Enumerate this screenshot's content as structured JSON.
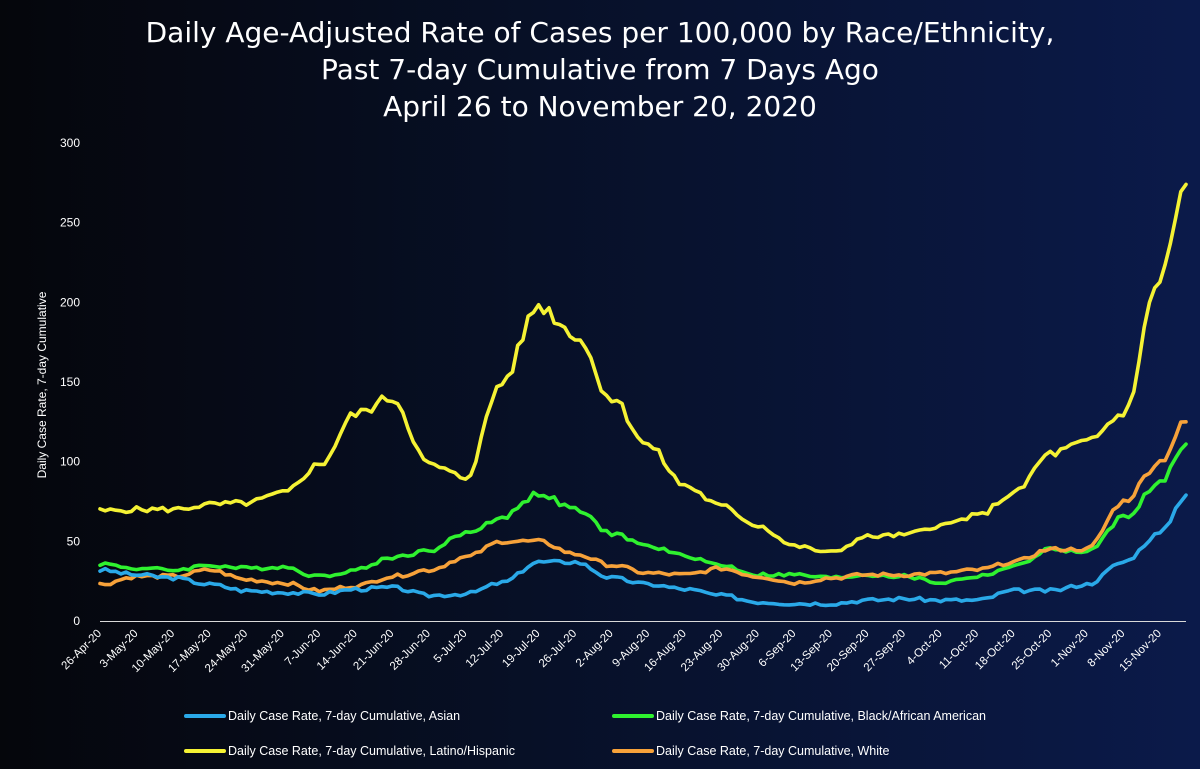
{
  "chart_data": {
    "type": "line",
    "title": "Daily Age-Adjusted Rate of Cases per 100,000 by Race/Ethnicity,",
    "subtitle": "Past 7-day Cumulative from 7 Days Ago",
    "date_range": "April 26 to November 20, 2020",
    "ylabel": "Daily Case Rate, 7-day Cumulative",
    "xlabel": "",
    "ylim": [
      0,
      300
    ],
    "yticks": [
      "0",
      "50",
      "100",
      "150",
      "200",
      "250",
      "300"
    ],
    "grid": false,
    "legend_position": "bottom",
    "x_tick_labels": [
      "26-Apr-20",
      "3-May-20",
      "10-May-20",
      "17-May-20",
      "24-May-20",
      "31-May-20",
      "7-Jun-20",
      "14-Jun-20",
      "21-Jun-20",
      "28-Jun-20",
      "5-Jul-20",
      "12-Jul-20",
      "19-Jul-20",
      "26-Jul-20",
      "2-Aug-20",
      "9-Aug-20",
      "16-Aug-20",
      "23-Aug-20",
      "30-Aug-20",
      "6-Sep-20",
      "13-Sep-20",
      "20-Sep-20",
      "27-Sep-20",
      "4-Oct-20",
      "11-Oct-20",
      "18-Oct-20",
      "25-Oct-20",
      "1-Nov-20",
      "8-Nov-20",
      "15-Nov-20"
    ],
    "x_tick_dates": [
      "2020-04-26",
      "2020-05-03",
      "2020-05-10",
      "2020-05-17",
      "2020-05-24",
      "2020-05-31",
      "2020-06-07",
      "2020-06-14",
      "2020-06-21",
      "2020-06-28",
      "2020-07-05",
      "2020-07-12",
      "2020-07-19",
      "2020-07-26",
      "2020-08-02",
      "2020-08-09",
      "2020-08-16",
      "2020-08-23",
      "2020-08-30",
      "2020-09-06",
      "2020-09-13",
      "2020-09-20",
      "2020-09-27",
      "2020-10-04",
      "2020-10-11",
      "2020-10-18",
      "2020-10-25",
      "2020-11-01",
      "2020-11-08",
      "2020-11-15"
    ],
    "series": [
      {
        "name": "Daily Case Rate, 7-day Cumulative, Asian",
        "color": "#2aa9e8",
        "points": [
          [
            "2020-04-26",
            32
          ],
          [
            "2020-05-03",
            29
          ],
          [
            "2020-05-10",
            27
          ],
          [
            "2020-05-17",
            23
          ],
          [
            "2020-05-24",
            19
          ],
          [
            "2020-05-31",
            18
          ],
          [
            "2020-06-07",
            17
          ],
          [
            "2020-06-14",
            20
          ],
          [
            "2020-06-21",
            21
          ],
          [
            "2020-06-28",
            16
          ],
          [
            "2020-07-05",
            17
          ],
          [
            "2020-07-12",
            24
          ],
          [
            "2020-07-19",
            37
          ],
          [
            "2020-07-26",
            37
          ],
          [
            "2020-08-02",
            27
          ],
          [
            "2020-08-09",
            23
          ],
          [
            "2020-08-16",
            20
          ],
          [
            "2020-08-23",
            16
          ],
          [
            "2020-08-30",
            12
          ],
          [
            "2020-09-06",
            11
          ],
          [
            "2020-09-13",
            11
          ],
          [
            "2020-09-20",
            13
          ],
          [
            "2020-09-27",
            14
          ],
          [
            "2020-10-04",
            13
          ],
          [
            "2020-10-11",
            13
          ],
          [
            "2020-10-18",
            19
          ],
          [
            "2020-10-25",
            19
          ],
          [
            "2020-11-01",
            23
          ],
          [
            "2020-11-08",
            37
          ],
          [
            "2020-11-15",
            55
          ],
          [
            "2020-11-20",
            79
          ]
        ]
      },
      {
        "name": "Daily Case Rate, 7-day Cumulative, Black/African American",
        "color": "#2ff22f",
        "points": [
          [
            "2020-04-26",
            36
          ],
          [
            "2020-05-03",
            33
          ],
          [
            "2020-05-10",
            32
          ],
          [
            "2020-05-17",
            35
          ],
          [
            "2020-05-24",
            33
          ],
          [
            "2020-05-31",
            34
          ],
          [
            "2020-06-07",
            28
          ],
          [
            "2020-06-14",
            32
          ],
          [
            "2020-06-21",
            40
          ],
          [
            "2020-06-28",
            44
          ],
          [
            "2020-07-05",
            55
          ],
          [
            "2020-07-12",
            65
          ],
          [
            "2020-07-19",
            80
          ],
          [
            "2020-07-26",
            70
          ],
          [
            "2020-08-02",
            55
          ],
          [
            "2020-08-09",
            47
          ],
          [
            "2020-08-16",
            41
          ],
          [
            "2020-08-23",
            35
          ],
          [
            "2020-08-30",
            29
          ],
          [
            "2020-09-06",
            29
          ],
          [
            "2020-09-13",
            27
          ],
          [
            "2020-09-20",
            29
          ],
          [
            "2020-09-27",
            28
          ],
          [
            "2020-10-04",
            24
          ],
          [
            "2020-10-11",
            28
          ],
          [
            "2020-10-18",
            34
          ],
          [
            "2020-10-25",
            45
          ],
          [
            "2020-11-01",
            43
          ],
          [
            "2020-11-08",
            65
          ],
          [
            "2020-11-15",
            86
          ],
          [
            "2020-11-20",
            111
          ]
        ]
      },
      {
        "name": "Daily Case Rate, 7-day Cumulative, Latino/Hispanic",
        "color": "#f5f234",
        "points": [
          [
            "2020-04-26",
            69
          ],
          [
            "2020-05-03",
            70
          ],
          [
            "2020-05-10",
            70
          ],
          [
            "2020-05-17",
            73
          ],
          [
            "2020-05-24",
            74
          ],
          [
            "2020-05-31",
            80
          ],
          [
            "2020-06-07",
            98
          ],
          [
            "2020-06-14",
            130
          ],
          [
            "2020-06-21",
            140
          ],
          [
            "2020-06-28",
            98
          ],
          [
            "2020-07-05",
            90
          ],
          [
            "2020-07-12",
            150
          ],
          [
            "2020-07-19",
            198
          ],
          [
            "2020-07-26",
            180
          ],
          [
            "2020-08-02",
            140
          ],
          [
            "2020-08-09",
            110
          ],
          [
            "2020-08-16",
            85
          ],
          [
            "2020-08-23",
            72
          ],
          [
            "2020-08-30",
            60
          ],
          [
            "2020-09-06",
            47
          ],
          [
            "2020-09-13",
            43
          ],
          [
            "2020-09-20",
            53
          ],
          [
            "2020-09-27",
            54
          ],
          [
            "2020-10-04",
            60
          ],
          [
            "2020-10-11",
            66
          ],
          [
            "2020-10-18",
            80
          ],
          [
            "2020-10-25",
            105
          ],
          [
            "2020-11-01",
            112
          ],
          [
            "2020-11-08",
            130
          ],
          [
            "2020-11-15",
            215
          ],
          [
            "2020-11-20",
            274
          ]
        ]
      },
      {
        "name": "Daily Case Rate, 7-day Cumulative, White",
        "color": "#f7a23a",
        "points": [
          [
            "2020-04-26",
            23
          ],
          [
            "2020-05-03",
            28
          ],
          [
            "2020-05-10",
            28
          ],
          [
            "2020-05-17",
            32
          ],
          [
            "2020-05-24",
            26
          ],
          [
            "2020-05-31",
            24
          ],
          [
            "2020-06-07",
            19
          ],
          [
            "2020-06-14",
            22
          ],
          [
            "2020-06-21",
            28
          ],
          [
            "2020-06-28",
            32
          ],
          [
            "2020-07-05",
            40
          ],
          [
            "2020-07-12",
            50
          ],
          [
            "2020-07-19",
            50
          ],
          [
            "2020-07-26",
            42
          ],
          [
            "2020-08-02",
            35
          ],
          [
            "2020-08-09",
            30
          ],
          [
            "2020-08-16",
            29
          ],
          [
            "2020-08-23",
            33
          ],
          [
            "2020-08-30",
            28
          ],
          [
            "2020-09-06",
            24
          ],
          [
            "2020-09-13",
            27
          ],
          [
            "2020-09-20",
            29
          ],
          [
            "2020-09-27",
            29
          ],
          [
            "2020-10-04",
            30
          ],
          [
            "2020-10-11",
            32
          ],
          [
            "2020-10-18",
            37
          ],
          [
            "2020-10-25",
            45
          ],
          [
            "2020-11-01",
            45
          ],
          [
            "2020-11-08",
            75
          ],
          [
            "2020-11-15",
            100
          ],
          [
            "2020-11-20",
            125
          ]
        ]
      }
    ]
  }
}
